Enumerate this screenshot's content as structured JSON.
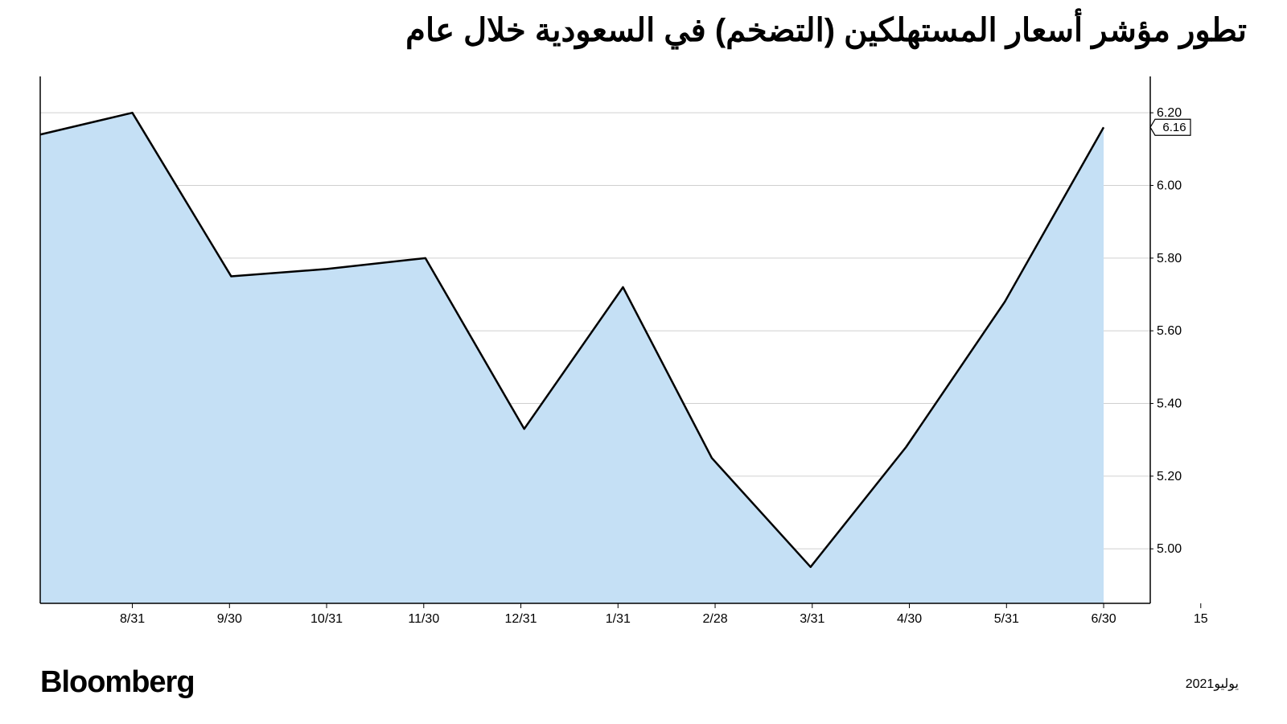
{
  "title": "تطور مؤشر أسعار المستهلكين (التضخم) في السعودية خلال عام",
  "brand": "Bloomberg",
  "date_label": "يوليو2021",
  "chart": {
    "type": "area",
    "background_color": "#ffffff",
    "fill_color": "#c5e0f5",
    "line_color": "#000000",
    "line_width": 2.5,
    "grid_color": "#d0d0d0",
    "axis_color": "#000000",
    "axis_width": 1.5,
    "tick_font_size": 16,
    "tick_color": "#000000",
    "x_labels": [
      "8/31",
      "9/30",
      "10/31",
      "11/30",
      "12/31",
      "1/31",
      "2/28",
      "3/31",
      "4/30",
      "5/31",
      "6/30",
      "15"
    ],
    "y_ticks": [
      5.0,
      5.2,
      5.4,
      5.6,
      5.8,
      6.0,
      6.2
    ],
    "ylim": [
      4.85,
      6.3
    ],
    "data_points": [
      {
        "x": 0.0,
        "y": 6.14
      },
      {
        "x": 0.083,
        "y": 6.2
      },
      {
        "x": 0.172,
        "y": 5.75
      },
      {
        "x": 0.258,
        "y": 5.77
      },
      {
        "x": 0.347,
        "y": 5.8
      },
      {
        "x": 0.436,
        "y": 5.33
      },
      {
        "x": 0.525,
        "y": 5.72
      },
      {
        "x": 0.605,
        "y": 5.25
      },
      {
        "x": 0.694,
        "y": 4.95
      },
      {
        "x": 0.78,
        "y": 5.28
      },
      {
        "x": 0.869,
        "y": 5.68
      },
      {
        "x": 0.958,
        "y": 6.16
      }
    ],
    "last_value": "6.16",
    "last_value_box": {
      "bg": "#ffffff",
      "border": "#000000",
      "text_color": "#000000"
    }
  }
}
